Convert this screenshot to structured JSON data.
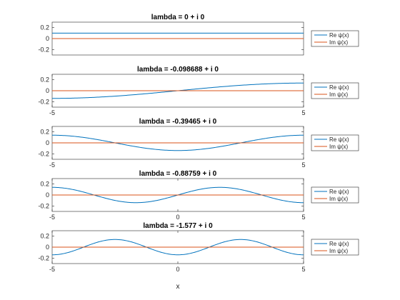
{
  "figure": {
    "xlabel": "x",
    "colors": {
      "real": "#0072BD",
      "imag": "#D95319",
      "axis": "#262626",
      "background": "#ffffff"
    }
  },
  "chart_data": [
    {
      "type": "line",
      "title": "lambda = 0 + i 0",
      "xlim": [
        -5,
        5
      ],
      "ylim": [
        -0.3,
        0.3
      ],
      "xticks": [],
      "xtick_labels": [],
      "yticks": [
        0.2,
        0,
        -0.2
      ],
      "ytick_labels": [
        "0.2",
        "0",
        "-0.2"
      ],
      "legend": {
        "location": "right-outside",
        "entries": [
          "Re ψ(x)",
          "Im ψ(x)"
        ]
      },
      "series": [
        {
          "name": "Re ψ(x)",
          "mode": 0,
          "amplitude": 0.1,
          "value": 0.1
        },
        {
          "name": "Im ψ(x)",
          "value": 0
        }
      ]
    },
    {
      "type": "line",
      "title": "lambda = -0.098688 + i 0",
      "xlim": [
        -5,
        5
      ],
      "ylim": [
        -0.3,
        0.3
      ],
      "xticks": [
        -5,
        5
      ],
      "xtick_labels": [
        "-5",
        "5"
      ],
      "yticks": [
        0.2,
        0,
        -0.2
      ],
      "ytick_labels": [
        "0.2",
        "0",
        "-0.2"
      ],
      "legend": {
        "location": "right-outside",
        "entries": [
          "Re ψ(x)",
          "Im ψ(x)"
        ]
      },
      "series": [
        {
          "name": "Re ψ(x)",
          "mode": 1,
          "amplitude": 0.14,
          "x": [
            -5,
            0,
            5
          ],
          "y": [
            -0.14,
            0,
            0.14
          ]
        },
        {
          "name": "Im ψ(x)",
          "value": 0
        }
      ]
    },
    {
      "type": "line",
      "title": "lambda = -0.39465 + i 0",
      "xlim": [
        -5,
        5
      ],
      "ylim": [
        -0.3,
        0.3
      ],
      "xticks": [
        -5,
        5
      ],
      "xtick_labels": [
        "-5",
        "5"
      ],
      "yticks": [
        0.2,
        0,
        -0.2
      ],
      "ytick_labels": [
        "0.2",
        "0",
        "-0.2"
      ],
      "legend": {
        "location": "right-outside",
        "entries": [
          "Re ψ(x)",
          "Im ψ(x)"
        ]
      },
      "series": [
        {
          "name": "Re ψ(x)",
          "mode": 2,
          "amplitude": 0.14,
          "x": [
            -5,
            -2.5,
            0,
            2.5,
            5
          ],
          "y": [
            0.14,
            0,
            -0.14,
            0,
            0.14
          ]
        },
        {
          "name": "Im ψ(x)",
          "value": 0
        }
      ]
    },
    {
      "type": "line",
      "title": "lambda = -0.88759 + i 0",
      "xlim": [
        -5,
        5
      ],
      "ylim": [
        -0.3,
        0.3
      ],
      "xticks": [
        -5,
        0,
        5
      ],
      "xtick_labels": [
        "-5",
        "0",
        "5"
      ],
      "yticks": [
        0.2,
        0,
        -0.2
      ],
      "ytick_labels": [
        "0.2",
        "0",
        "-0.2"
      ],
      "legend": {
        "location": "right-outside",
        "entries": [
          "Re ψ(x)",
          "Im ψ(x)"
        ]
      },
      "series": [
        {
          "name": "Re ψ(x)",
          "mode": 3,
          "amplitude": 0.14,
          "x": [
            -5,
            -3.33,
            -1.67,
            0,
            1.67,
            3.33,
            5
          ],
          "y": [
            0.14,
            0,
            -0.14,
            0,
            0.14,
            0,
            -0.14
          ]
        },
        {
          "name": "Im ψ(x)",
          "value": 0
        }
      ]
    },
    {
      "type": "line",
      "title": "lambda = -1.577 + i 0",
      "xlim": [
        -5,
        5
      ],
      "ylim": [
        -0.3,
        0.3
      ],
      "xticks": [
        -5,
        0,
        5
      ],
      "xtick_labels": [
        "-5",
        "0",
        "5"
      ],
      "yticks": [
        0.2,
        0,
        -0.2
      ],
      "ytick_labels": [
        "0.2",
        "0",
        "-0.2"
      ],
      "legend": {
        "location": "right-outside",
        "entries": [
          "Re ψ(x)",
          "Im ψ(x)"
        ]
      },
      "series": [
        {
          "name": "Re ψ(x)",
          "mode": 4,
          "amplitude": 0.14,
          "x": [
            -5,
            -3.75,
            -2.5,
            -1.25,
            0,
            1.25,
            2.5,
            3.75,
            5
          ],
          "y": [
            -0.14,
            0,
            0.14,
            0,
            -0.14,
            0,
            0.14,
            0,
            -0.14
          ]
        },
        {
          "name": "Im ψ(x)",
          "value": 0
        }
      ]
    }
  ]
}
